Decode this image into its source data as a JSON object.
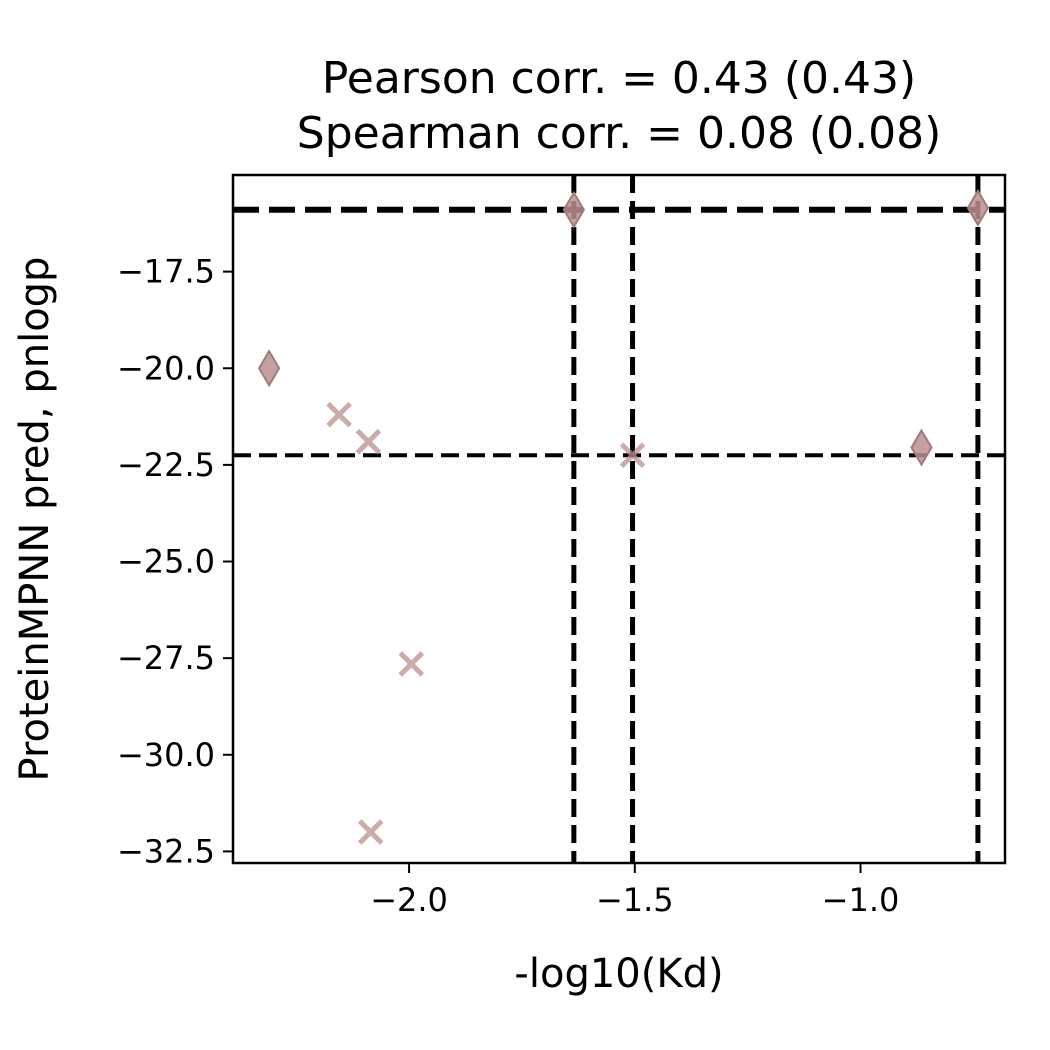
{
  "chart_data": {
    "type": "scatter",
    "title_lines": [
      "Pearson corr. = 0.43 (0.43)",
      "Spearman corr. = 0.08 (0.08)"
    ],
    "xlabel": "-log10(Kd)",
    "ylabel": "ProteinMPNN pred, pnlogp",
    "xlim": [
      -2.39,
      -0.68
    ],
    "ylim": [
      -32.8,
      -15.0
    ],
    "xticks": [
      {
        "value": -2.0,
        "label": "−2.0"
      },
      {
        "value": -1.5,
        "label": "−1.5"
      },
      {
        "value": -1.0,
        "label": "−1.0"
      }
    ],
    "yticks": [
      {
        "value": -17.5,
        "label": "−17.5"
      },
      {
        "value": -20.0,
        "label": "−20.0"
      },
      {
        "value": -22.5,
        "label": "−22.5"
      },
      {
        "value": -25.0,
        "label": "−25.0"
      },
      {
        "value": -27.5,
        "label": "−27.5"
      },
      {
        "value": -30.0,
        "label": "−30.0"
      },
      {
        "value": -32.5,
        "label": "−32.5"
      }
    ],
    "grid": false,
    "marker_color": "#bc8f8f",
    "reference_lines": {
      "vertical": [
        {
          "x": -1.635,
          "style": "dashed",
          "weight": "bold"
        },
        {
          "x": -1.505,
          "style": "dashed",
          "weight": "bold"
        },
        {
          "x": -0.74,
          "style": "dashed",
          "weight": "bold"
        }
      ],
      "horizontal": [
        {
          "y": -15.9,
          "style": "dashed",
          "weight": "bold"
        },
        {
          "y": -22.25,
          "style": "dashed",
          "weight": "normal"
        }
      ]
    },
    "series": [
      {
        "marker": "x",
        "points": [
          {
            "x": -2.155,
            "y": -21.2
          },
          {
            "x": -2.09,
            "y": -21.9
          },
          {
            "x": -1.505,
            "y": -22.25
          },
          {
            "x": -1.995,
            "y": -27.65
          },
          {
            "x": -2.085,
            "y": -32.0
          }
        ]
      },
      {
        "marker": "diamond",
        "points": [
          {
            "x": -2.31,
            "y": -20.0
          },
          {
            "x": -1.635,
            "y": -15.9
          },
          {
            "x": -0.865,
            "y": -22.05
          },
          {
            "x": -0.74,
            "y": -15.85
          }
        ]
      }
    ]
  }
}
